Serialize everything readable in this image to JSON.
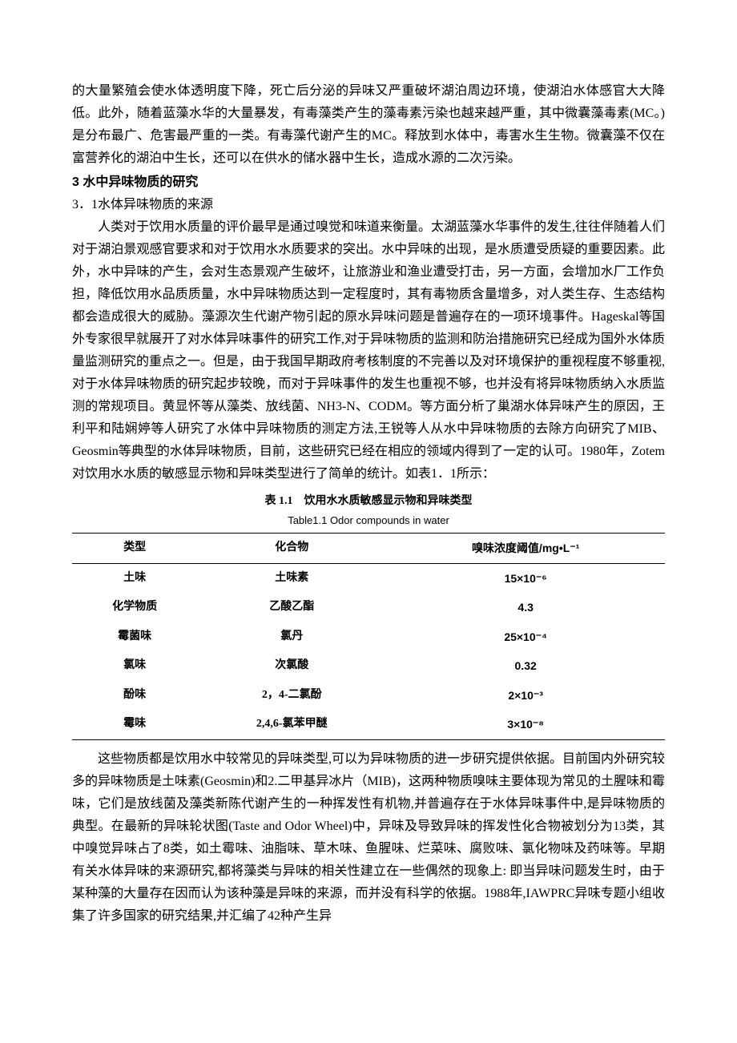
{
  "intro_para": "的大量繁殖会使水体透明度下降，死亡后分泌的异味又严重破坏湖泊周边环境，使湖泊水体感官大大降低。此外，随着蓝藻水华的大量暴发，有毒藻类产生的藻毒素污染也越来越严重，其中微囊藻毒素(MC。)是分布最广、危害最严重的一类。有毒藻代谢产生的MC。释放到水体中，毒害水生生物。微囊藻不仅在富营养化的湖泊中生长，还可以在供水的储水器中生长，造成水源的二次污染。",
  "section3_heading": "3 水中异味物质的研究",
  "section3_1_heading": "3．1水体异味物质的来源",
  "section3_1_para": "人类对于饮用水质量的评价最早是通过嗅觉和味道来衡量。太湖蓝藻水华事件的发生,往往伴随着人们对于湖泊景观感官要求和对于饮用水水质要求的突出。水中异味的出现，是水质遭受质疑的重要因素。此外，水中异味的产生，会对生态景观产生破坏，让旅游业和渔业遭受打击，另一方面，会增加水厂工作负担，降低饮用水品质质量，水中异味物质达到一定程度时，其有毒物质含量增多，对人类生存、生态结构都会造成很大的威胁。藻源次生代谢产物引起的原水异味问题是普遍存在的一项环境事件。Hageskal等国外专家很早就展开了对水体异味事件的研究工作,对于异味物质的监测和防治措施研究已经成为国外水体质量监测研究的重点之一。但是，由于我国早期政府考核制度的不完善以及对环境保护的重视程度不够重视,对于水体异味物质的研究起步较晚，而对于异味事件的发生也重视不够，也并没有将异味物质纳入水质监测的常规项目。黄显怀等从藻类、放线菌、NH3-N、CODM。等方面分析了巢湖水体异味产生的原因，王利平和陆娴婷等人研究了水体中异味物质的测定方法,王锐等人从水中异味物质的去除方向研究了MIB、Geosmin等典型的水体异味物质，目前，这些研究已经在相应的领域内得到了一定的认可。1980年，Zotem对饮用水水质的敏感显示物和异味类型进行了简单的统计。如表1．1所示：",
  "table": {
    "title_cn": "表 1.1　饮用水水质敏感显示物和异味类型",
    "title_en": "Table1.1 Odor compounds in water",
    "columns": [
      "类型",
      "化合物",
      "嗅味浓度阈值/mg•L⁻¹"
    ],
    "rows": [
      [
        "土味",
        "土味素",
        "15×10⁻⁶"
      ],
      [
        "化学物质",
        "乙酸乙酯",
        "4.3"
      ],
      [
        "霉菌味",
        "氯丹",
        "25×10⁻⁴"
      ],
      [
        "氯味",
        "次氯酸",
        "0.32"
      ],
      [
        "酚味",
        "2，4-二氯酚",
        "2×10⁻³"
      ],
      [
        "霉味",
        "2,4,6-氯苯甲醚",
        "3×10⁻⁸"
      ]
    ],
    "col_widths": [
      "33%",
      "34%",
      "33%"
    ]
  },
  "after_table_para": "这些物质都是饮用水中较常见的异味类型,可以为异味物质的进一步研究提供依据。目前国内外研究较多的异味物质是土味素(Geosmin)和2.二甲基异冰片（MIB)，这两种物质嗅味主要体现为常见的土腥味和霉味，它们是放线菌及藻类新陈代谢产生的一种挥发性有机物,并普遍存在于水体异味事件中,是异味物质的典型。在最新的异味轮状图(Taste and Odor Wheel)中，异味及导致异味的挥发性化合物被划分为13类，其中嗅觉异味占了8类，如土霉味、油脂味、草木味、鱼腥味、烂菜味、腐败味、氯化物味及药味等。早期有关水体异味的来源研究,都将藻类与异味的相关性建立在一些偶然的现象上: 即当异味问题发生时，由于某种藻的大量存在因而认为该种藻是异味的来源，而并没有科学的依据。1988年,IAWPRC异味专题小组收集了许多国家的研究结果,并汇编了42种产生异"
}
